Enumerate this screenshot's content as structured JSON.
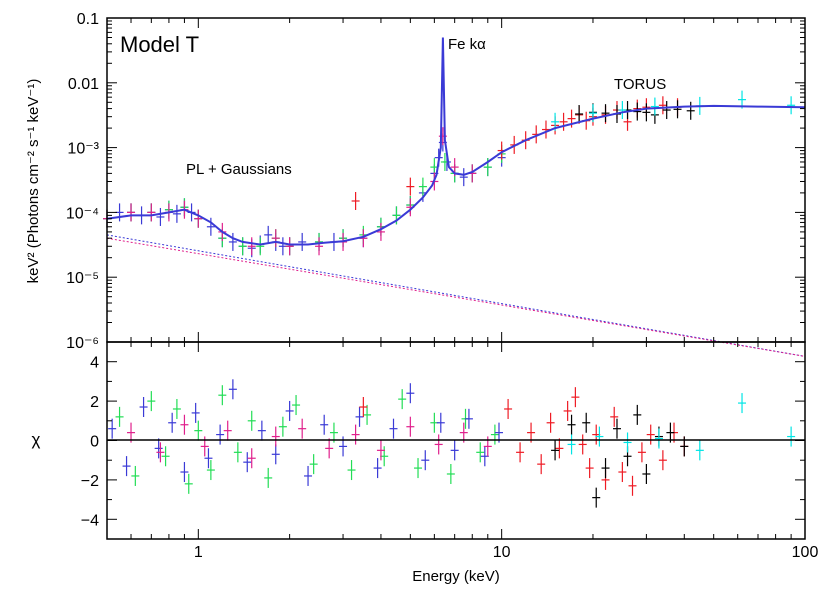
{
  "chart_data": [
    {
      "type": "scatter",
      "panel": "top",
      "title": "Model T",
      "ylabel": "keV² (Photons cm⁻² s⁻¹ keV⁻¹)",
      "xlabel": "",
      "xscale": "log",
      "yscale": "log",
      "xlim": [
        0.5,
        100
      ],
      "ylim": [
        1e-06,
        0.1
      ],
      "ytick_labels": [
        {
          "value": 0.1,
          "label": "0.1"
        },
        {
          "value": 0.01,
          "label": "0.01"
        },
        {
          "value": 0.001,
          "label": "10⁻³"
        },
        {
          "value": 0.0001,
          "label": "10⁻⁴"
        },
        {
          "value": 1e-05,
          "label": "10⁻⁵"
        },
        {
          "value": 1e-06,
          "label": "10⁻⁶"
        }
      ],
      "annotations": [
        {
          "text": "Fe kα",
          "x": 6.6,
          "y": 0.045
        },
        {
          "text": "TORUS",
          "x": 22,
          "y": 0.0125
        },
        {
          "text": "PL + Gaussians",
          "x": 0.92,
          "y": 0.00055
        }
      ],
      "series": [
        {
          "color": "#3a3ad6",
          "x": [
            0.5,
            0.55,
            0.6,
            0.65,
            0.7,
            0.75,
            0.8,
            0.85,
            0.9,
            0.95,
            1.0,
            1.1,
            1.2,
            1.3,
            1.4,
            1.5,
            1.6,
            1.7,
            1.8,
            1.9,
            2.0,
            2.2,
            2.5,
            2.8,
            3.0,
            3.5,
            4.0,
            4.5,
            5.0,
            5.5,
            6.0,
            6.2,
            6.4,
            6.6,
            7.0,
            7.5,
            8.0,
            9.0,
            10.0
          ],
          "y": [
            8e-05,
            0.0001,
            0.0001,
            9e-05,
            0.0001,
            8.5e-05,
            0.00011,
            9.5e-05,
            0.00012,
            0.0001,
            8e-05,
            6e-05,
            4e-05,
            3.5e-05,
            3e-05,
            2.8e-05,
            3.2e-05,
            4.5e-05,
            3.5e-05,
            3e-05,
            3e-05,
            3.5e-05,
            3.5e-05,
            3.5e-05,
            4e-05,
            4e-05,
            6e-05,
            9e-05,
            0.00013,
            0.0002,
            0.0004,
            0.0007,
            0.0012,
            0.0006,
            0.0004,
            0.00035,
            0.0004,
            0.0005,
            0.0007
          ]
        },
        {
          "color": "#22dd55",
          "x": [
            0.5,
            0.6,
            0.7,
            0.8,
            0.9,
            1.0,
            1.2,
            1.4,
            1.6,
            1.8,
            2.0,
            2.5,
            3.0,
            3.5,
            4.0,
            4.5,
            5.0,
            5.5,
            6.0,
            6.5,
            7.0,
            8.0,
            9.0,
            10.0
          ],
          "y": [
            8e-05,
            0.0001,
            0.0001,
            0.00011,
            0.00012,
            8e-05,
            4e-05,
            3e-05,
            3e-05,
            4e-05,
            3e-05,
            3.5e-05,
            4e-05,
            4.5e-05,
            6e-05,
            9e-05,
            0.00013,
            0.00025,
            0.0005,
            0.0006,
            0.0004,
            0.0004,
            0.0005,
            0.0008
          ]
        },
        {
          "color": "#e0208c",
          "x": [
            0.5,
            0.6,
            0.7,
            0.8,
            0.9,
            1.0,
            1.2,
            1.5,
            1.8,
            2.0,
            2.5,
            3.0,
            3.5,
            4.0,
            5.0,
            6.0,
            6.4,
            7.0,
            8.0
          ],
          "y": [
            8e-05,
            0.0001,
            0.0001,
            0.0001,
            0.00011,
            8e-05,
            5e-05,
            3e-05,
            4e-05,
            3e-05,
            3e-05,
            3.5e-05,
            4e-05,
            5e-05,
            0.00012,
            0.0003,
            0.0015,
            0.0005,
            0.0004
          ]
        },
        {
          "color": "#ee1b24",
          "x": [
            3.3,
            5.0,
            10.0,
            11.0,
            12.0,
            13.0,
            14.0,
            15.0,
            16.0,
            17.0,
            18.0,
            19.0,
            20.0,
            22.0,
            24.0,
            26.0,
            28.0,
            30.0,
            34.0,
            38.0
          ],
          "y": [
            0.00015,
            0.00025,
            0.0009,
            0.0011,
            0.0013,
            0.0016,
            0.0019,
            0.0022,
            0.0025,
            0.0028,
            0.0032,
            0.0026,
            0.003,
            0.0032,
            0.0038,
            0.0025,
            0.004,
            0.0042,
            0.0045,
            0.0042
          ]
        },
        {
          "color": "#000000",
          "x": [
            18.0,
            20.0,
            22.0,
            24.0,
            26.0,
            28.0,
            30.0,
            32.0,
            35.0,
            38.0,
            42.0
          ],
          "y": [
            0.0033,
            0.0035,
            0.0034,
            0.0033,
            0.0038,
            0.0036,
            0.0035,
            0.0032,
            0.0038,
            0.0039,
            0.0037
          ]
        },
        {
          "color": "#00e5e5",
          "x": [
            15.0,
            20.0,
            25.0,
            32.0,
            45.0,
            62.0,
            90.0
          ],
          "y": [
            0.0025,
            0.0034,
            0.0038,
            0.0043,
            0.0044,
            0.0055,
            0.0045
          ]
        }
      ],
      "model": {
        "color": "#3a3ad6",
        "x": [
          0.5,
          0.6,
          0.7,
          0.8,
          0.9,
          1.0,
          1.1,
          1.2,
          1.3,
          1.4,
          1.6,
          1.8,
          2.0,
          2.3,
          2.6,
          3.0,
          3.5,
          4.0,
          4.5,
          5.0,
          5.5,
          5.9,
          6.1,
          6.3,
          6.4,
          6.5,
          6.7,
          7.0,
          7.5,
          8.0,
          9.0,
          10.0,
          12.0,
          15.0,
          20.0,
          25.0,
          30.0,
          40.0,
          50.0,
          70.0,
          100.0
        ],
        "y": [
          8e-05,
          9e-05,
          9e-05,
          0.0001,
          0.00011,
          9e-05,
          7e-05,
          5e-05,
          4e-05,
          3.5e-05,
          3.2e-05,
          3.5e-05,
          3.2e-05,
          3.2e-05,
          3.4e-05,
          3.6e-05,
          4.2e-05,
          5.5e-05,
          7.5e-05,
          0.00011,
          0.00017,
          0.00026,
          0.00038,
          0.001,
          0.05,
          0.0013,
          0.0005,
          0.0004,
          0.00038,
          0.00042,
          0.0006,
          0.00085,
          0.0013,
          0.002,
          0.0028,
          0.0035,
          0.004,
          0.0043,
          0.0044,
          0.0043,
          0.0042
        ]
      },
      "powerlaw_components": [
        {
          "color": "#3a3ad6",
          "x": [
            0.5,
            100
          ],
          "y": [
            4.5e-05,
            6e-07
          ]
        },
        {
          "color": "#e0208c",
          "x": [
            0.5,
            100
          ],
          "y": [
            4e-05,
            6e-07
          ]
        }
      ]
    },
    {
      "type": "scatter",
      "panel": "bottom",
      "title": "",
      "ylabel": "χ",
      "xlabel": "Energy (keV)",
      "xscale": "log",
      "xlim": [
        0.5,
        100
      ],
      "ylim": [
        -5,
        5
      ],
      "ytick_labels": [
        {
          "value": 4,
          "label": "4"
        },
        {
          "value": 2,
          "label": "2"
        },
        {
          "value": 0,
          "label": "0"
        },
        {
          "value": -2,
          "label": "−2"
        },
        {
          "value": -4,
          "label": "−4"
        }
      ],
      "xtick_labels": [
        {
          "value": 1,
          "label": "1"
        },
        {
          "value": 10,
          "label": "10"
        },
        {
          "value": 100,
          "label": "100"
        }
      ],
      "zero_line": 0,
      "series": [
        {
          "color": "#22dd55",
          "x": [
            0.55,
            0.62,
            0.7,
            0.78,
            0.85,
            0.93,
            1.0,
            1.1,
            1.2,
            1.35,
            1.5,
            1.7,
            1.9,
            2.1,
            2.4,
            2.8,
            3.2,
            3.6,
            4.1,
            4.7,
            5.3,
            6.0,
            6.8,
            7.6,
            8.5,
            9.5
          ],
          "y": [
            1.2,
            -1.8,
            2.0,
            -0.8,
            1.6,
            -2.2,
            0.5,
            -1.5,
            2.3,
            -0.6,
            1.0,
            -1.9,
            0.7,
            1.8,
            -1.2,
            0.4,
            -1.5,
            1.3,
            -0.8,
            2.1,
            -1.4,
            0.9,
            -1.7,
            1.1,
            -0.6,
            0.3
          ]
        },
        {
          "color": "#3a3ad6",
          "x": [
            0.52,
            0.58,
            0.66,
            0.74,
            0.82,
            0.9,
            0.98,
            1.08,
            1.18,
            1.3,
            1.45,
            1.62,
            1.8,
            2.0,
            2.3,
            2.6,
            3.0,
            3.4,
            3.9,
            4.4,
            5.0,
            5.6,
            6.3,
            7.0,
            7.8,
            8.8,
            9.8
          ],
          "y": [
            0.6,
            -1.3,
            1.7,
            -0.4,
            0.9,
            -1.6,
            1.4,
            -0.9,
            0.3,
            2.6,
            -1.1,
            0.5,
            -0.7,
            1.5,
            -1.8,
            0.8,
            -0.3,
            1.2,
            -1.4,
            0.6,
            2.4,
            -1.0,
            0.9,
            -0.5,
            1.1,
            -0.8,
            0.4
          ]
        },
        {
          "color": "#e0208c",
          "x": [
            0.6,
            0.75,
            0.9,
            1.05,
            1.25,
            1.5,
            1.8,
            2.2,
            2.7,
            3.3,
            4.0,
            5.0,
            6.2,
            7.5,
            9.0
          ],
          "y": [
            0.4,
            -0.6,
            0.8,
            -0.3,
            0.5,
            -0.9,
            0.2,
            0.6,
            -0.4,
            0.3,
            -0.5,
            0.7,
            -0.2,
            0.4,
            -0.3
          ]
        },
        {
          "color": "#ee1b24",
          "x": [
            3.5,
            10.5,
            11.5,
            12.5,
            13.5,
            14.5,
            15.5,
            16.5,
            17.5,
            18.5,
            19.5,
            20.5,
            22.0,
            23.5,
            25.0,
            27.0,
            29.0,
            31.0,
            34.0,
            37.0,
            40.0
          ],
          "y": [
            1.7,
            1.6,
            -0.6,
            0.4,
            -1.2,
            0.9,
            -0.4,
            1.5,
            2.2,
            -0.2,
            -1.4,
            0.3,
            -2.0,
            1.2,
            -1.6,
            -2.3,
            -0.6,
            0.3,
            -1.0,
            0.4,
            -0.3
          ]
        },
        {
          "color": "#000000",
          "x": [
            15.0,
            17.0,
            19.0,
            20.5,
            22.0,
            24.0,
            26.0,
            28.0,
            30.0,
            33.0,
            36.0,
            40.0
          ],
          "y": [
            -0.5,
            0.8,
            0.9,
            -2.9,
            -1.4,
            0.6,
            -0.8,
            1.3,
            -1.7,
            0.2,
            0.4,
            -0.3
          ]
        },
        {
          "color": "#00e5e5",
          "x": [
            17.0,
            21.0,
            26.0,
            33.0,
            45.0,
            62.0,
            90.0
          ],
          "y": [
            -0.2,
            0.2,
            -0.1,
            0.1,
            -0.5,
            1.9,
            0.2
          ]
        }
      ]
    }
  ]
}
